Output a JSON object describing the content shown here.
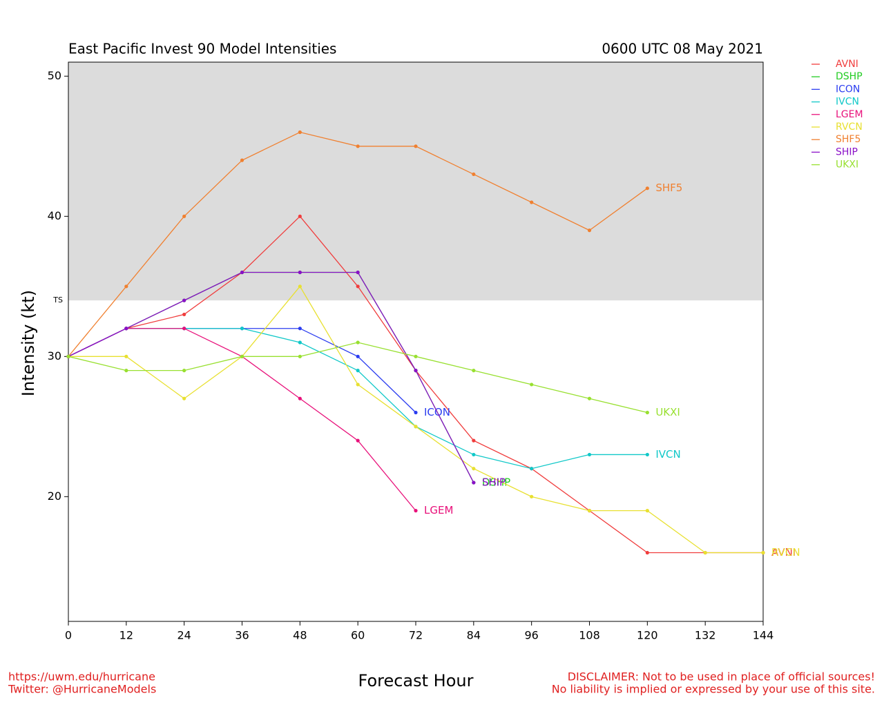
{
  "chart_data": {
    "type": "line",
    "title": "East Pacific Invest 90 Model Intensities",
    "subtitle": "0600 UTC 08 May 2021",
    "x_label": "Forecast Hour",
    "y_label": "Intensity (kt)",
    "threshold": {
      "label": "TS",
      "value": 34,
      "color": "#dcdcdc"
    },
    "footer_left": [
      "https://uwm.edu/hurricane",
      "Twitter: @HurricaneModels"
    ],
    "footer_right": [
      "DISCLAIMER: Not to be used in place of official sources!",
      "No liability is implied or expressed by your use of this site."
    ],
    "x": [
      0,
      12,
      24,
      36,
      48,
      60,
      72,
      84,
      96,
      108,
      120,
      132,
      144
    ],
    "xlim": [
      0,
      144
    ],
    "xticks": [
      0,
      12,
      24,
      36,
      48,
      60,
      72,
      84,
      96,
      108,
      120,
      132,
      144
    ],
    "ylim": [
      11.1,
      51
    ],
    "yticks": [
      20,
      30,
      40,
      50
    ],
    "legend": "outside-right",
    "series": [
      {
        "name": "AVNI",
        "color": "#f03c3c",
        "values": [
          30,
          32,
          33,
          36,
          40,
          35,
          29,
          24,
          22,
          19,
          16,
          16,
          16
        ]
      },
      {
        "name": "DSHP",
        "color": "#22cc22",
        "values": [
          30,
          32,
          34,
          36,
          36,
          36,
          29,
          21,
          null,
          null,
          null,
          null,
          null
        ]
      },
      {
        "name": "ICON",
        "color": "#2a3cf0",
        "values": [
          30,
          32,
          32,
          32,
          32,
          30,
          26,
          null,
          null,
          null,
          null,
          null,
          null
        ]
      },
      {
        "name": "IVCN",
        "color": "#10c8c8",
        "values": [
          30,
          32,
          32,
          32,
          31,
          29,
          25,
          23,
          22,
          23,
          23,
          null,
          null
        ]
      },
      {
        "name": "LGEM",
        "color": "#e8107a",
        "values": [
          30,
          32,
          32,
          30,
          27,
          24,
          19,
          null,
          null,
          null,
          null,
          null,
          null
        ]
      },
      {
        "name": "RVCN",
        "color": "#e8e030",
        "values": [
          30,
          30,
          27,
          30,
          35,
          28,
          25,
          22,
          20,
          19,
          19,
          16,
          16
        ]
      },
      {
        "name": "SHF5",
        "color": "#f08030",
        "values": [
          30,
          35,
          40,
          44,
          46,
          45,
          45,
          43,
          41,
          39,
          42,
          null,
          null
        ]
      },
      {
        "name": "SHIP",
        "color": "#8a10c8",
        "values": [
          30,
          32,
          34,
          36,
          36,
          36,
          29,
          21,
          null,
          null,
          null,
          null,
          null
        ]
      },
      {
        "name": "UKXI",
        "color": "#98e030",
        "values": [
          30,
          29,
          29,
          30,
          30,
          31,
          30,
          29,
          28,
          27,
          26,
          null,
          null
        ]
      }
    ]
  }
}
